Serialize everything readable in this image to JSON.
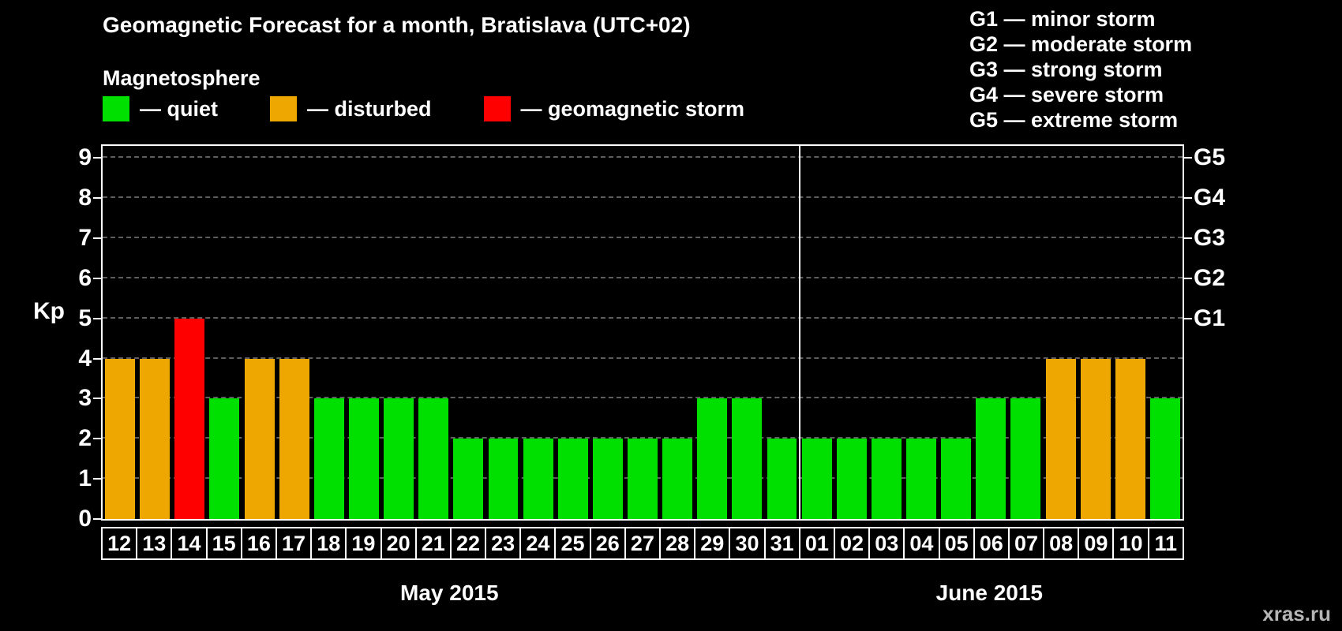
{
  "header": {
    "title": "Geomagnetic Forecast for a month, Bratislava (UTC+02)",
    "subtitle": "Magnetosphere"
  },
  "legend": {
    "items": [
      {
        "key": "quiet",
        "label": "— quiet",
        "color": "#00e000"
      },
      {
        "key": "disturbed",
        "label": "— disturbed",
        "color": "#eea600"
      },
      {
        "key": "storm",
        "label": "— geomagnetic storm",
        "color": "#fe0000"
      }
    ]
  },
  "storm_scale": {
    "items": [
      "G1 — minor storm",
      "G2 — moderate storm",
      "G3 — strong storm",
      "G4 — severe storm",
      "G5 — extreme storm"
    ]
  },
  "watermark": "xras.ru",
  "chart_data": {
    "type": "bar",
    "title": "Geomagnetic Forecast for a month, Bratislava (UTC+02)",
    "ylabel": "Kp",
    "ylim": [
      0,
      9
    ],
    "yticks": [
      0,
      1,
      2,
      3,
      4,
      5,
      6,
      7,
      8,
      9
    ],
    "grid": "dashed horizontal gridlines at each Kp level",
    "legend_position": "top-left",
    "right_axis": [
      {
        "label": "G1",
        "kp": 5
      },
      {
        "label": "G2",
        "kp": 6
      },
      {
        "label": "G3",
        "kp": 7
      },
      {
        "label": "G4",
        "kp": 8
      },
      {
        "label": "G5",
        "kp": 9
      }
    ],
    "colors": {
      "quiet": "#00e000",
      "disturbed": "#eea600",
      "storm": "#fe0000"
    },
    "months": [
      {
        "label": "May 2015",
        "start_index": 0,
        "count": 20
      },
      {
        "label": "June 2015",
        "start_index": 20,
        "count": 11
      }
    ],
    "bars": [
      {
        "day": "12",
        "month": "May 2015",
        "kp": 4,
        "status": "disturbed"
      },
      {
        "day": "13",
        "month": "May 2015",
        "kp": 4,
        "status": "disturbed"
      },
      {
        "day": "14",
        "month": "May 2015",
        "kp": 5,
        "status": "storm"
      },
      {
        "day": "15",
        "month": "May 2015",
        "kp": 3,
        "status": "quiet"
      },
      {
        "day": "16",
        "month": "May 2015",
        "kp": 4,
        "status": "disturbed"
      },
      {
        "day": "17",
        "month": "May 2015",
        "kp": 4,
        "status": "disturbed"
      },
      {
        "day": "18",
        "month": "May 2015",
        "kp": 3,
        "status": "quiet"
      },
      {
        "day": "19",
        "month": "May 2015",
        "kp": 3,
        "status": "quiet"
      },
      {
        "day": "20",
        "month": "May 2015",
        "kp": 3,
        "status": "quiet"
      },
      {
        "day": "21",
        "month": "May 2015",
        "kp": 3,
        "status": "quiet"
      },
      {
        "day": "22",
        "month": "May 2015",
        "kp": 2,
        "status": "quiet"
      },
      {
        "day": "23",
        "month": "May 2015",
        "kp": 2,
        "status": "quiet"
      },
      {
        "day": "24",
        "month": "May 2015",
        "kp": 2,
        "status": "quiet"
      },
      {
        "day": "25",
        "month": "May 2015",
        "kp": 2,
        "status": "quiet"
      },
      {
        "day": "26",
        "month": "May 2015",
        "kp": 2,
        "status": "quiet"
      },
      {
        "day": "27",
        "month": "May 2015",
        "kp": 2,
        "status": "quiet"
      },
      {
        "day": "28",
        "month": "May 2015",
        "kp": 2,
        "status": "quiet"
      },
      {
        "day": "29",
        "month": "May 2015",
        "kp": 3,
        "status": "quiet"
      },
      {
        "day": "30",
        "month": "May 2015",
        "kp": 3,
        "status": "quiet"
      },
      {
        "day": "31",
        "month": "May 2015",
        "kp": 2,
        "status": "quiet"
      },
      {
        "day": "01",
        "month": "June 2015",
        "kp": 2,
        "status": "quiet"
      },
      {
        "day": "02",
        "month": "June 2015",
        "kp": 2,
        "status": "quiet"
      },
      {
        "day": "03",
        "month": "June 2015",
        "kp": 2,
        "status": "quiet"
      },
      {
        "day": "04",
        "month": "June 2015",
        "kp": 2,
        "status": "quiet"
      },
      {
        "day": "05",
        "month": "June 2015",
        "kp": 2,
        "status": "quiet"
      },
      {
        "day": "06",
        "month": "June 2015",
        "kp": 3,
        "status": "quiet"
      },
      {
        "day": "07",
        "month": "June 2015",
        "kp": 3,
        "status": "quiet"
      },
      {
        "day": "08",
        "month": "June 2015",
        "kp": 4,
        "status": "disturbed"
      },
      {
        "day": "09",
        "month": "June 2015",
        "kp": 4,
        "status": "disturbed"
      },
      {
        "day": "10",
        "month": "June 2015",
        "kp": 4,
        "status": "disturbed"
      },
      {
        "day": "11",
        "month": "June 2015",
        "kp": 3,
        "status": "quiet"
      }
    ]
  }
}
